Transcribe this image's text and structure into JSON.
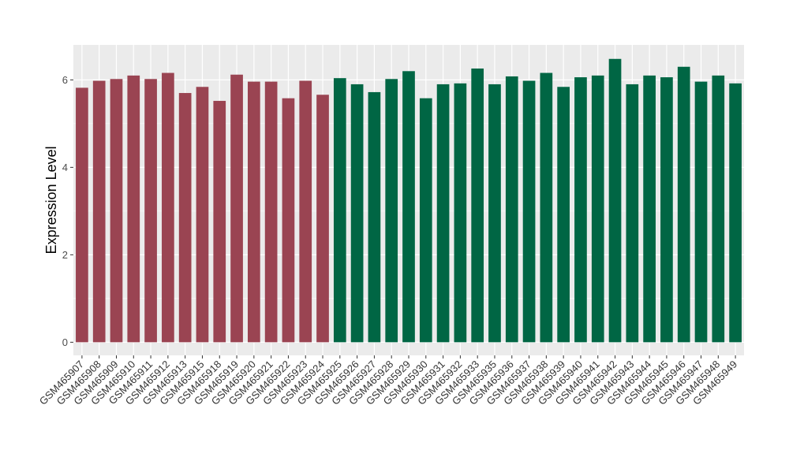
{
  "chart_data": {
    "type": "bar",
    "xlabel": "",
    "ylabel": "Expression Level",
    "ylim": [
      -0.3,
      6.8
    ],
    "yticks": [
      0,
      2,
      4,
      6
    ],
    "grid": true,
    "legend": "none",
    "panel_background": "#ebebeb",
    "gridline_color": "#ffffff",
    "categories": [
      "GSM465907",
      "GSM465908",
      "GSM465909",
      "GSM465910",
      "GSM465911",
      "GSM465912",
      "GSM465913",
      "GSM465915",
      "GSM465918",
      "GSM465919",
      "GSM465920",
      "GSM465921",
      "GSM465922",
      "GSM465923",
      "GSM465924",
      "GSM465925",
      "GSM465926",
      "GSM465927",
      "GSM465928",
      "GSM465929",
      "GSM465930",
      "GSM465931",
      "GSM465932",
      "GSM465933",
      "GSM465935",
      "GSM465936",
      "GSM465937",
      "GSM465938",
      "GSM465939",
      "GSM465940",
      "GSM465941",
      "GSM465942",
      "GSM465943",
      "GSM465944",
      "GSM465945",
      "GSM465946",
      "GSM465947",
      "GSM465948",
      "GSM465949"
    ],
    "values": [
      5.82,
      5.98,
      6.02,
      6.1,
      6.02,
      6.16,
      5.7,
      5.84,
      5.52,
      6.12,
      5.96,
      5.96,
      5.58,
      5.98,
      5.66,
      6.04,
      5.9,
      5.72,
      6.02,
      6.2,
      5.58,
      5.9,
      5.92,
      6.26,
      5.9,
      6.08,
      5.98,
      6.16,
      5.84,
      6.06,
      6.1,
      6.48,
      5.9,
      6.1,
      6.06,
      6.3,
      5.96,
      6.1,
      5.92
    ],
    "group_colors": [
      "#9a4452",
      "#9a4452",
      "#9a4452",
      "#9a4452",
      "#9a4452",
      "#9a4452",
      "#9a4452",
      "#9a4452",
      "#9a4452",
      "#9a4452",
      "#9a4452",
      "#9a4452",
      "#9a4452",
      "#9a4452",
      "#9a4452",
      "#006644",
      "#006644",
      "#006644",
      "#006644",
      "#006644",
      "#006644",
      "#006644",
      "#006644",
      "#006644",
      "#006644",
      "#006644",
      "#006644",
      "#006644",
      "#006644",
      "#006644",
      "#006644",
      "#006644",
      "#006644",
      "#006644",
      "#006644",
      "#006644",
      "#006644",
      "#006644",
      "#006644"
    ]
  }
}
